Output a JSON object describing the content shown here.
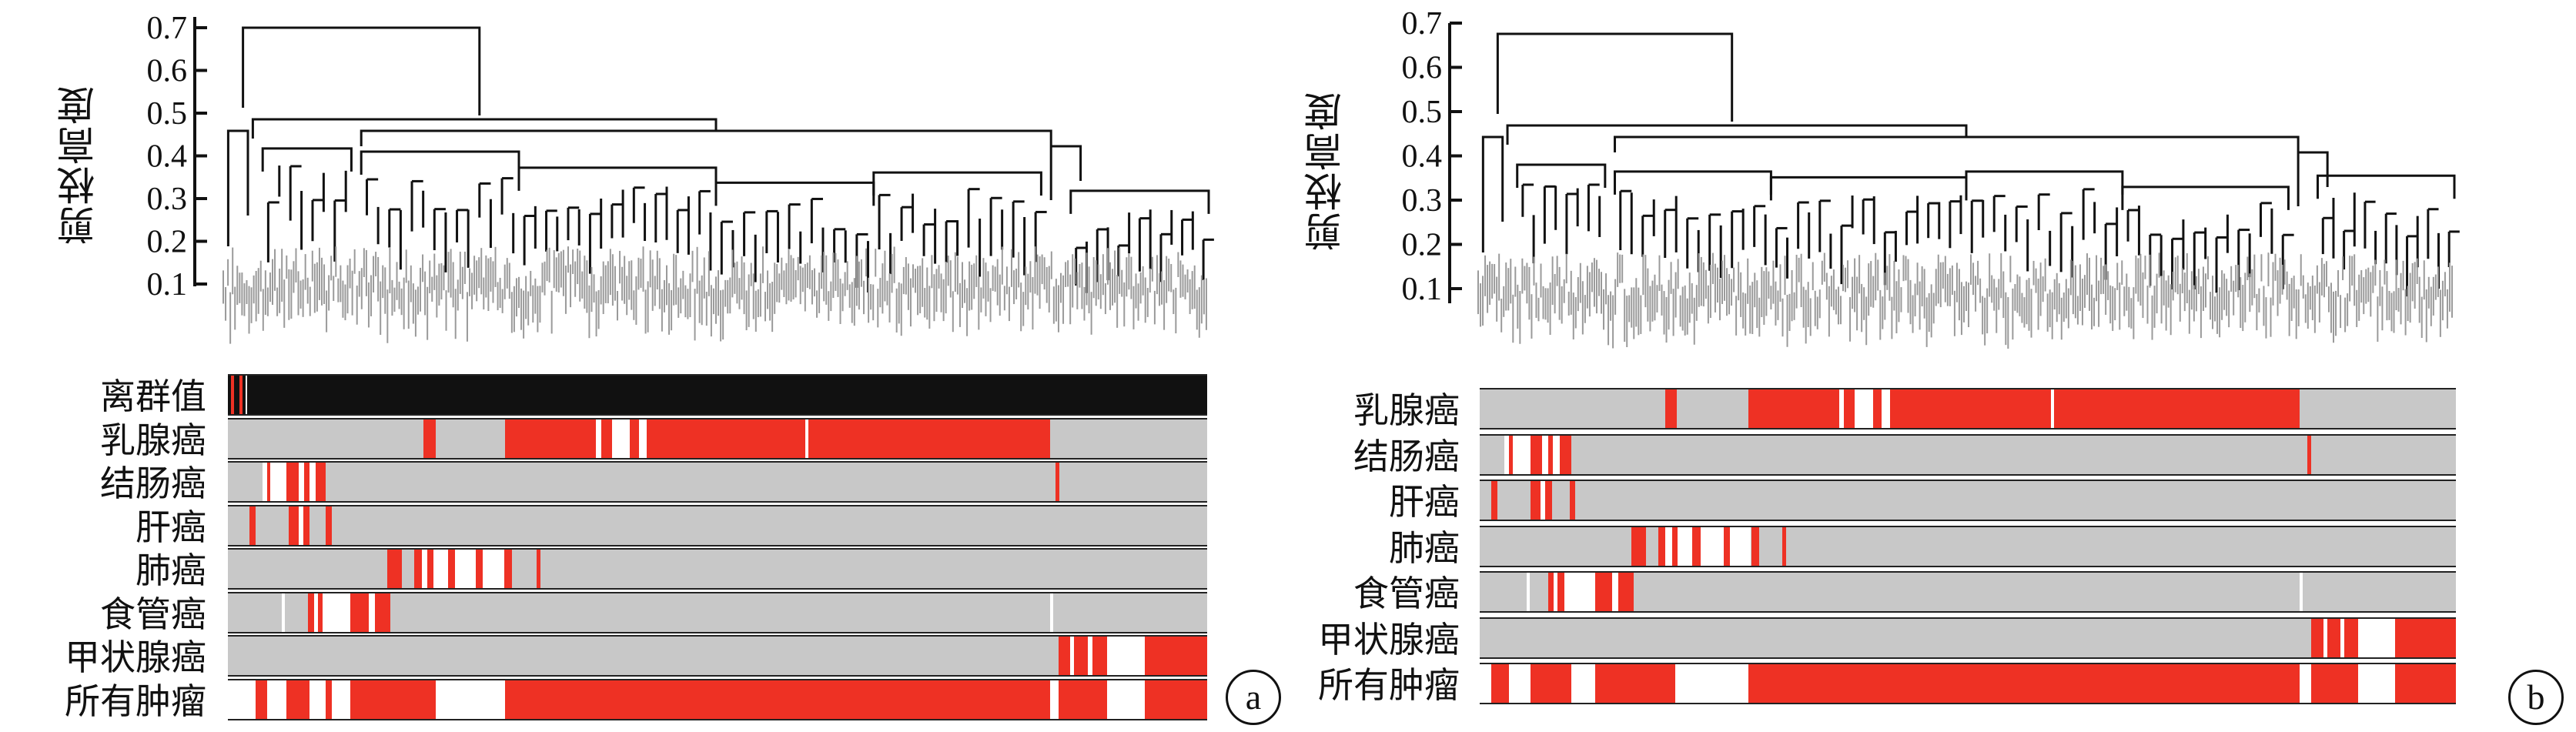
{
  "colors": {
    "present": "#ee3124",
    "absent": "#c8c8c8",
    "gap": "#ffffff",
    "outlier_bar": "#111111",
    "branch": "#111111",
    "leaves": "#9a9a9a"
  },
  "panels": [
    {
      "id": "a",
      "badge": "a",
      "ylabel": "剪枝高度",
      "yticks": [
        "0.7",
        "0.6",
        "0.5",
        "0.4",
        "0.3",
        "0.2",
        "0.1"
      ],
      "tracks": [
        {
          "label": "离群值",
          "kind": "outlier",
          "segments": [
            [
              0.003,
              0.006,
              "red"
            ],
            [
              0.012,
              0.015,
              "red"
            ],
            [
              0.018,
              0.02,
              "white"
            ]
          ]
        },
        {
          "label": "乳腺癌",
          "segments": [
            [
              0.2,
              0.212,
              "red"
            ],
            [
              0.283,
              0.376,
              "red"
            ],
            [
              0.376,
              0.381,
              "white"
            ],
            [
              0.381,
              0.392,
              "red"
            ],
            [
              0.392,
              0.41,
              "white"
            ],
            [
              0.41,
              0.42,
              "red"
            ],
            [
              0.42,
              0.428,
              "white"
            ],
            [
              0.428,
              0.59,
              "red"
            ],
            [
              0.59,
              0.593,
              "white"
            ],
            [
              0.593,
              0.84,
              "red"
            ]
          ]
        },
        {
          "label": "结肠癌",
          "segments": [
            [
              0.035,
              0.04,
              "white"
            ],
            [
              0.04,
              0.043,
              "red"
            ],
            [
              0.043,
              0.06,
              "white"
            ],
            [
              0.06,
              0.072,
              "red"
            ],
            [
              0.072,
              0.078,
              "white"
            ],
            [
              0.078,
              0.083,
              "red"
            ],
            [
              0.083,
              0.09,
              "white"
            ],
            [
              0.09,
              0.1,
              "red"
            ],
            [
              0.845,
              0.849,
              "red"
            ]
          ]
        },
        {
          "label": "肝癌",
          "segments": [
            [
              0.022,
              0.028,
              "red"
            ],
            [
              0.062,
              0.072,
              "red"
            ],
            [
              0.072,
              0.077,
              "white"
            ],
            [
              0.077,
              0.083,
              "red"
            ],
            [
              0.1,
              0.106,
              "red"
            ]
          ]
        },
        {
          "label": "肺癌",
          "segments": [
            [
              0.163,
              0.178,
              "red"
            ],
            [
              0.19,
              0.198,
              "red"
            ],
            [
              0.198,
              0.204,
              "white"
            ],
            [
              0.204,
              0.21,
              "red"
            ],
            [
              0.21,
              0.225,
              "white"
            ],
            [
              0.225,
              0.232,
              "red"
            ],
            [
              0.232,
              0.253,
              "white"
            ],
            [
              0.253,
              0.26,
              "red"
            ],
            [
              0.26,
              0.282,
              "white"
            ],
            [
              0.282,
              0.29,
              "red"
            ],
            [
              0.315,
              0.319,
              "red"
            ]
          ]
        },
        {
          "label": "食管癌",
          "segments": [
            [
              0.055,
              0.058,
              "white"
            ],
            [
              0.082,
              0.088,
              "red"
            ],
            [
              0.088,
              0.092,
              "white"
            ],
            [
              0.092,
              0.097,
              "red"
            ],
            [
              0.097,
              0.108,
              "white"
            ],
            [
              0.108,
              0.125,
              "white"
            ],
            [
              0.125,
              0.144,
              "red"
            ],
            [
              0.144,
              0.15,
              "white"
            ],
            [
              0.15,
              0.166,
              "red"
            ],
            [
              0.84,
              0.843,
              "white"
            ]
          ]
        },
        {
          "label": "甲状腺癌",
          "segments": [
            [
              0.848,
              0.86,
              "red"
            ],
            [
              0.86,
              0.864,
              "white"
            ],
            [
              0.864,
              0.878,
              "red"
            ],
            [
              0.878,
              0.883,
              "white"
            ],
            [
              0.883,
              0.898,
              "red"
            ],
            [
              0.898,
              0.936,
              "white"
            ],
            [
              0.936,
              1.0,
              "red"
            ]
          ]
        },
        {
          "label": "所有肿瘤",
          "kind": "all",
          "segments": [
            [
              0.028,
              0.04,
              "red"
            ],
            [
              0.06,
              0.083,
              "red"
            ],
            [
              0.1,
              0.106,
              "red"
            ],
            [
              0.125,
              0.166,
              "red"
            ],
            [
              0.166,
              0.2,
              "red"
            ],
            [
              0.2,
              0.212,
              "red"
            ],
            [
              0.283,
              0.84,
              "red"
            ],
            [
              0.848,
              0.898,
              "red"
            ],
            [
              0.936,
              1.0,
              "red"
            ]
          ]
        }
      ]
    },
    {
      "id": "b",
      "badge": "b",
      "ylabel": "剪枝高度",
      "yticks": [
        "0.7",
        "0.6",
        "0.5",
        "0.4",
        "0.3",
        "0.2",
        "0.1"
      ],
      "tracks": [
        {
          "label": "乳腺癌",
          "segments": [
            [
              0.19,
              0.202,
              "red"
            ],
            [
              0.275,
              0.368,
              "red"
            ],
            [
              0.368,
              0.373,
              "white"
            ],
            [
              0.373,
              0.384,
              "red"
            ],
            [
              0.384,
              0.403,
              "white"
            ],
            [
              0.403,
              0.412,
              "red"
            ],
            [
              0.412,
              0.42,
              "white"
            ],
            [
              0.42,
              0.585,
              "red"
            ],
            [
              0.585,
              0.588,
              "white"
            ],
            [
              0.588,
              0.84,
              "red"
            ]
          ]
        },
        {
          "label": "结肠癌",
          "segments": [
            [
              0.025,
              0.03,
              "white"
            ],
            [
              0.03,
              0.034,
              "red"
            ],
            [
              0.034,
              0.052,
              "white"
            ],
            [
              0.052,
              0.064,
              "red"
            ],
            [
              0.064,
              0.07,
              "white"
            ],
            [
              0.07,
              0.075,
              "red"
            ],
            [
              0.075,
              0.082,
              "white"
            ],
            [
              0.082,
              0.094,
              "red"
            ],
            [
              0.848,
              0.852,
              "red"
            ]
          ]
        },
        {
          "label": "肝癌",
          "segments": [
            [
              0.012,
              0.018,
              "red"
            ],
            [
              0.052,
              0.062,
              "red"
            ],
            [
              0.062,
              0.067,
              "white"
            ],
            [
              0.067,
              0.074,
              "red"
            ],
            [
              0.092,
              0.098,
              "red"
            ]
          ]
        },
        {
          "label": "肺癌",
          "segments": [
            [
              0.155,
              0.17,
              "red"
            ],
            [
              0.183,
              0.19,
              "red"
            ],
            [
              0.19,
              0.197,
              "white"
            ],
            [
              0.197,
              0.203,
              "red"
            ],
            [
              0.203,
              0.218,
              "white"
            ],
            [
              0.218,
              0.226,
              "red"
            ],
            [
              0.226,
              0.25,
              "white"
            ],
            [
              0.25,
              0.256,
              "red"
            ],
            [
              0.256,
              0.278,
              "white"
            ],
            [
              0.278,
              0.286,
              "red"
            ],
            [
              0.31,
              0.314,
              "red"
            ]
          ]
        },
        {
          "label": "食管癌",
          "segments": [
            [
              0.048,
              0.051,
              "white"
            ],
            [
              0.07,
              0.076,
              "red"
            ],
            [
              0.076,
              0.08,
              "white"
            ],
            [
              0.08,
              0.087,
              "red"
            ],
            [
              0.087,
              0.118,
              "white"
            ],
            [
              0.118,
              0.136,
              "red"
            ],
            [
              0.136,
              0.142,
              "white"
            ],
            [
              0.142,
              0.158,
              "red"
            ],
            [
              0.84,
              0.843,
              "white"
            ]
          ]
        },
        {
          "label": "甲状腺癌",
          "segments": [
            [
              0.852,
              0.864,
              "red"
            ],
            [
              0.864,
              0.868,
              "white"
            ],
            [
              0.868,
              0.882,
              "red"
            ],
            [
              0.882,
              0.886,
              "white"
            ],
            [
              0.886,
              0.9,
              "red"
            ],
            [
              0.9,
              0.938,
              "white"
            ],
            [
              0.938,
              1.0,
              "red"
            ]
          ]
        },
        {
          "label": "所有肿瘤",
          "kind": "all",
          "segments": [
            [
              0.012,
              0.03,
              "red"
            ],
            [
              0.052,
              0.094,
              "red"
            ],
            [
              0.118,
              0.2,
              "red"
            ],
            [
              0.275,
              0.84,
              "red"
            ],
            [
              0.852,
              0.9,
              "red"
            ],
            [
              0.938,
              1.0,
              "red"
            ]
          ]
        }
      ]
    }
  ]
}
